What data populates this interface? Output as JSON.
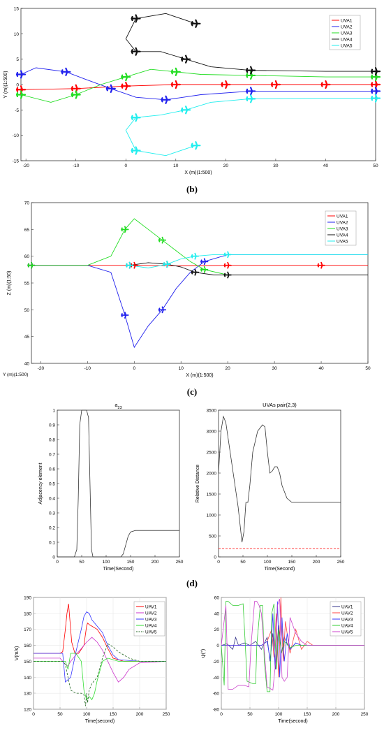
{
  "captions": {
    "b": "(b)",
    "c": "(c)",
    "d": "(d)"
  },
  "legend_uva": [
    "UVA1",
    "UVA2",
    "UVA3",
    "UVA4",
    "UVA5"
  ],
  "legend_uav": [
    "UAV1",
    "UAV2",
    "UAV3",
    "UAV4",
    "UAV5"
  ],
  "colors": {
    "uva1": "#ff0000",
    "uva2": "#2222ee",
    "uva3": "#22dd22",
    "uva4": "#111111",
    "uva5": "#22eeee"
  },
  "chart_data": [
    {
      "id": "b",
      "type": "line",
      "title": "",
      "xlabel": "X (m)(1:500)",
      "ylabel": "Y (m)(1:500)",
      "xlim": [
        -21,
        50
      ],
      "ylim": [
        -15,
        15
      ],
      "xticks": [
        -20,
        -10,
        0,
        10,
        20,
        30,
        40,
        50
      ],
      "yticks": [
        -15,
        -10,
        -5,
        0,
        5,
        10,
        15
      ],
      "series": [
        {
          "name": "UVA1",
          "color": "#ff0000",
          "x": [
            -21,
            -10,
            0,
            10,
            20,
            30,
            40,
            50
          ],
          "y": [
            -1,
            -0.8,
            -0.3,
            0,
            0,
            0,
            0,
            0
          ]
        },
        {
          "name": "UVA2",
          "color": "#2222ee",
          "x": [
            -21,
            -18,
            -12,
            -8,
            -3,
            2,
            8,
            15,
            25,
            35,
            50
          ],
          "y": [
            2,
            3.3,
            2.5,
            1,
            -0.8,
            -2.5,
            -3,
            -2,
            -1.3,
            -1.3,
            -1.3
          ]
        },
        {
          "name": "UVA3",
          "color": "#22dd22",
          "x": [
            -21,
            -15,
            -10,
            -5,
            0,
            5,
            10,
            15,
            25,
            40,
            50
          ],
          "y": [
            -2,
            -3.5,
            -2,
            0,
            1.5,
            3,
            2.5,
            2,
            1.8,
            1.5,
            1.5
          ]
        },
        {
          "name": "UVA4",
          "color": "#111111",
          "x": [
            14,
            8,
            2,
            0,
            2,
            7,
            12,
            17,
            25,
            40,
            50
          ],
          "y": [
            12,
            14,
            13,
            9,
            6.5,
            6.5,
            5,
            3.5,
            2.8,
            2.6,
            2.6
          ]
        },
        {
          "name": "UVA5",
          "color": "#22eeee",
          "x": [
            14,
            8,
            2,
            0,
            2,
            7,
            12,
            17,
            25,
            40,
            50
          ],
          "y": [
            -12,
            -14,
            -13,
            -9,
            -6.5,
            -6,
            -5,
            -3.5,
            -2.8,
            -2.7,
            -2.7
          ]
        }
      ]
    },
    {
      "id": "c",
      "type": "line",
      "title": "",
      "xlabel": "X (m)(1:500)",
      "ylabel": "Z (m)(1:50)",
      "ylabel2": "Y (m)(1:500)",
      "xlim": [
        -22,
        50
      ],
      "zlim": [
        40,
        70
      ],
      "xticks": [
        -20,
        -10,
        0,
        10,
        20,
        30,
        40,
        50
      ],
      "zticks": [
        40,
        45,
        50,
        55,
        60,
        65,
        70
      ],
      "series": [
        {
          "name": "UVA1",
          "color": "#ff0000",
          "x": [
            -22,
            -10,
            0,
            10,
            20,
            30,
            40,
            50
          ],
          "z": [
            58.3,
            58.3,
            58.3,
            58.2,
            58.3,
            58.3,
            58.3,
            58.3
          ]
        },
        {
          "name": "UVA2",
          "color": "#2222ee",
          "x": [
            -22,
            -10,
            -5,
            -2,
            0,
            3,
            6,
            9,
            12,
            15,
            20,
            50
          ],
          "z": [
            58.3,
            58.3,
            57,
            49,
            43,
            47,
            50,
            54,
            57,
            59,
            60.3,
            60.3
          ]
        },
        {
          "name": "UVA3",
          "color": "#22dd22",
          "x": [
            -22,
            -10,
            -5,
            -2,
            0,
            3,
            6,
            9,
            12,
            15,
            20,
            50
          ],
          "z": [
            58.3,
            58.3,
            60,
            65,
            67,
            65,
            63,
            61,
            59,
            57.5,
            56.5,
            56.5
          ]
        },
        {
          "name": "UVA4",
          "color": "#111111",
          "x": [
            -1,
            3,
            7,
            10,
            13,
            17,
            20,
            50
          ],
          "z": [
            58.3,
            58.8,
            58.5,
            58,
            57,
            56.5,
            56.5,
            56.5
          ]
        },
        {
          "name": "UVA5",
          "color": "#22eeee",
          "x": [
            -1,
            3,
            7,
            10,
            13,
            17,
            20,
            50
          ],
          "z": [
            58.3,
            57.8,
            58.5,
            59.5,
            60,
            60.3,
            60.3,
            60.3
          ]
        }
      ]
    },
    {
      "id": "d-left",
      "type": "line",
      "title": "a",
      "title_sub": "23",
      "xlabel": "Time(Second)",
      "ylabel": "Adjacency element",
      "xlim": [
        0,
        250
      ],
      "ylim": [
        0,
        1
      ],
      "xticks": [
        0,
        50,
        100,
        150,
        200,
        250
      ],
      "yticks": [
        0,
        0.1,
        0.2,
        0.3,
        0.4,
        0.5,
        0.6,
        0.7,
        0.8,
        0.9,
        1
      ],
      "series": [
        {
          "name": "",
          "color": "#333333",
          "x": [
            0,
            35,
            40,
            43,
            46,
            50,
            60,
            64,
            67,
            70,
            73,
            130,
            135,
            140,
            145,
            150,
            160,
            250
          ],
          "y": [
            0,
            0,
            0.05,
            0.4,
            0.9,
            1,
            1,
            0.95,
            0.5,
            0.05,
            0,
            0,
            0.02,
            0.08,
            0.14,
            0.17,
            0.18,
            0.18
          ]
        }
      ]
    },
    {
      "id": "d-right",
      "type": "line",
      "title": "UVAs pair(2,3)",
      "xlabel": "Time(Second)",
      "ylabel": "Relative Distance",
      "xlim": [
        0,
        250
      ],
      "ylim": [
        0,
        3500
      ],
      "xticks": [
        0,
        50,
        100,
        150,
        200,
        250
      ],
      "yticks": [
        0,
        500,
        1000,
        1500,
        2000,
        2500,
        3000,
        3500
      ],
      "series": [
        {
          "name": "",
          "color": "#333333",
          "x": [
            0,
            5,
            10,
            15,
            20,
            30,
            40,
            48,
            52,
            56,
            60,
            64,
            70,
            80,
            90,
            95,
            100,
            105,
            110,
            115,
            120,
            125,
            130,
            140,
            150,
            160,
            250
          ],
          "y": [
            2000,
            3000,
            3350,
            3200,
            2800,
            2000,
            1200,
            350,
            600,
            1300,
            1300,
            1700,
            2500,
            3000,
            3150,
            3100,
            2500,
            2000,
            2050,
            2150,
            2150,
            2000,
            1700,
            1400,
            1300,
            1300,
            1300
          ]
        },
        {
          "name": "",
          "color": "#ff0000",
          "dashed": true,
          "x": [
            0,
            250
          ],
          "y": [
            200,
            200
          ]
        }
      ]
    },
    {
      "id": "e-left",
      "type": "line",
      "title": "",
      "xlabel": "Time(second)",
      "ylabel": "V(m/s)",
      "xlim": [
        0,
        250
      ],
      "ylim": [
        120,
        190
      ],
      "xticks": [
        0,
        50,
        100,
        150,
        200,
        250
      ],
      "yticks": [
        120,
        130,
        140,
        150,
        160,
        170,
        180,
        190
      ],
      "series": [
        {
          "name": "UAV1",
          "color": "#ff0000",
          "x": [
            0,
            50,
            55,
            60,
            63,
            66,
            68,
            72,
            78,
            85,
            95,
            100,
            102,
            105,
            110,
            120,
            130,
            140,
            150,
            170,
            200,
            250
          ],
          "y": [
            155,
            155,
            156,
            170,
            180,
            186,
            178,
            162,
            155,
            155,
            160,
            172,
            174,
            173,
            172,
            170,
            165,
            158,
            152,
            150,
            150,
            150
          ]
        },
        {
          "name": "UAV2",
          "color": "#cc33cc",
          "x": [
            0,
            40,
            50,
            55,
            60,
            65,
            70,
            80,
            90,
            100,
            110,
            120,
            130,
            140,
            150,
            160,
            170,
            180,
            200,
            250
          ],
          "y": [
            152,
            152,
            152,
            150,
            148,
            147,
            150,
            154,
            158,
            162,
            165,
            162,
            157,
            150,
            143,
            137,
            140,
            145,
            149,
            150
          ]
        },
        {
          "name": "UAV3",
          "color": "#3333ff",
          "x": [
            0,
            40,
            55,
            60,
            70,
            80,
            90,
            95,
            100,
            105,
            110,
            120,
            130,
            140,
            150,
            160,
            200,
            250
          ],
          "y": [
            155,
            155,
            155,
            137,
            140,
            156,
            170,
            178,
            181,
            180,
            176,
            172,
            168,
            160,
            154,
            151,
            150,
            150
          ]
        },
        {
          "name": "UAV4",
          "color": "#33dd33",
          "x": [
            0,
            50,
            60,
            65,
            70,
            80,
            90,
            95,
            100,
            105,
            110,
            115,
            120,
            130,
            140,
            150,
            160,
            200,
            250
          ],
          "y": [
            150,
            150,
            150,
            145,
            155,
            155,
            150,
            132,
            126,
            128,
            126,
            130,
            138,
            150,
            152,
            151,
            150,
            150,
            150
          ]
        },
        {
          "name": "UAV5",
          "color": "#226622",
          "dashed": true,
          "x": [
            0,
            50,
            55,
            60,
            70,
            80,
            90,
            95,
            98,
            100,
            102,
            105,
            110,
            120,
            130,
            140,
            150,
            160,
            180,
            200,
            250
          ],
          "y": [
            150,
            150,
            150,
            148,
            132,
            130,
            130,
            129,
            122,
            130,
            124,
            132,
            136,
            140,
            152,
            161,
            159,
            156,
            152,
            150,
            150
          ]
        }
      ]
    },
    {
      "id": "e-right",
      "type": "line",
      "title": "",
      "xlabel": "Time(second)",
      "ylabel": "ψ(°)",
      "xlim": [
        0,
        250
      ],
      "ylim": [
        -80,
        60
      ],
      "xticks": [
        0,
        50,
        100,
        150,
        200,
        250
      ],
      "yticks": [
        -80,
        -60,
        -40,
        -20,
        0,
        20,
        40,
        60
      ],
      "series": [
        {
          "name": "UAV1",
          "color": "#333388",
          "x": [
            0,
            10,
            20,
            25,
            30,
            40,
            50,
            60,
            70,
            80,
            85,
            90,
            95,
            100,
            105,
            110,
            120,
            130,
            140,
            150,
            250
          ],
          "y": [
            0,
            2,
            -5,
            10,
            0,
            3,
            0,
            5,
            -5,
            10,
            -20,
            15,
            -30,
            25,
            -10,
            10,
            -5,
            3,
            0,
            0,
            0
          ]
        },
        {
          "name": "UAV2",
          "color": "#ff4444",
          "x": [
            0,
            50,
            70,
            80,
            88,
            92,
            96,
            100,
            104,
            108,
            112,
            120,
            130,
            140,
            150,
            160,
            250
          ],
          "y": [
            0,
            0,
            0,
            5,
            20,
            -15,
            40,
            -40,
            60,
            -20,
            30,
            -10,
            20,
            -5,
            5,
            0,
            0
          ]
        },
        {
          "name": "UAV3",
          "color": "#3333ff",
          "x": [
            0,
            50,
            70,
            80,
            86,
            90,
            94,
            98,
            102,
            106,
            110,
            115,
            120,
            130,
            140,
            150,
            250
          ],
          "y": [
            0,
            0,
            0,
            5,
            -20,
            40,
            -30,
            55,
            -40,
            35,
            -20,
            15,
            -5,
            3,
            0,
            0,
            0
          ]
        },
        {
          "name": "UAV4",
          "color": "#33cc33",
          "x": [
            0,
            5,
            8,
            12,
            20,
            30,
            38,
            42,
            45,
            55,
            60,
            62,
            68,
            72,
            75,
            80,
            85,
            88,
            92,
            96,
            100,
            105,
            110,
            120,
            130,
            140,
            150,
            250
          ],
          "y": [
            0,
            -50,
            55,
            55,
            50,
            50,
            52,
            0,
            -45,
            -48,
            -48,
            0,
            50,
            50,
            -20,
            -58,
            -58,
            40,
            52,
            -30,
            20,
            -10,
            5,
            -3,
            0,
            0,
            0,
            0
          ]
        },
        {
          "name": "UAV5",
          "color": "#cc44cc",
          "x": [
            0,
            8,
            12,
            20,
            30,
            40,
            48,
            52,
            58,
            62,
            66,
            70,
            80,
            90,
            95,
            98,
            102,
            106,
            110,
            115,
            120,
            125,
            130,
            140,
            150,
            160,
            250
          ],
          "y": [
            0,
            50,
            -55,
            -55,
            -50,
            -50,
            -52,
            0,
            55,
            55,
            50,
            40,
            -52,
            -56,
            -20,
            50,
            58,
            -40,
            -45,
            -40,
            35,
            25,
            15,
            5,
            0,
            0,
            0
          ]
        }
      ]
    }
  ]
}
